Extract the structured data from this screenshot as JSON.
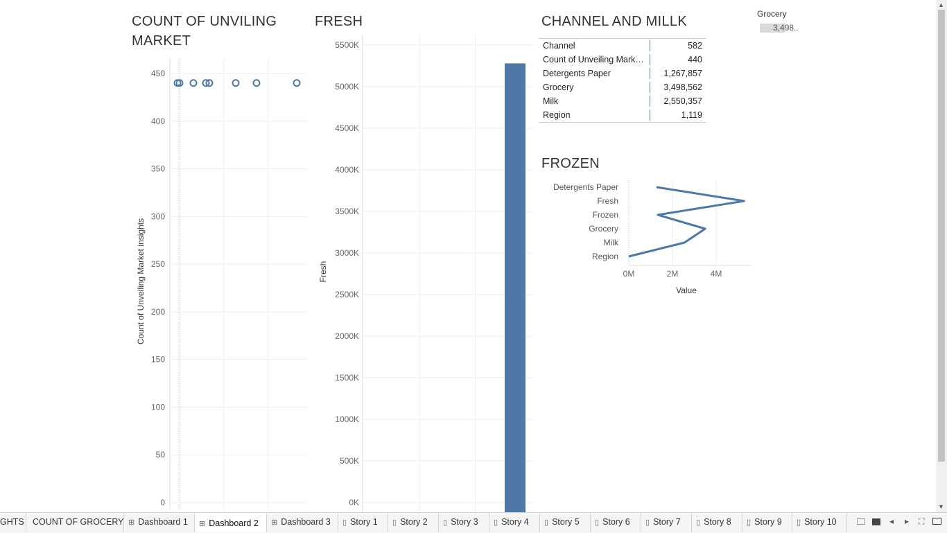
{
  "scatter": {
    "title_line1": "COUNT OF UNVILING",
    "title_line2": "MARKET",
    "y_ticks": [
      "450",
      "400",
      "350",
      "300",
      "250",
      "200",
      "150",
      "100",
      "50",
      "0"
    ],
    "y_axis_title": "Count of Unveiling Market insights",
    "marker_color": "#4e79a7"
  },
  "fresh": {
    "title": "FRESH",
    "y_ticks": [
      "5500K",
      "5000K",
      "4500K",
      "4000K",
      "3500K",
      "3000K",
      "2500K",
      "2000K",
      "1500K",
      "1000K",
      "500K",
      "0K"
    ],
    "y_axis_title": "Fresh",
    "bar_color": "#4e79a7"
  },
  "table": {
    "title": "CHANNEL AND MILLK",
    "rows": [
      {
        "label": "Channel",
        "value": "582"
      },
      {
        "label": "Count of Unveiling Market..",
        "value": "440"
      },
      {
        "label": "Detergents Paper",
        "value": "1,267,857"
      },
      {
        "label": "Grocery",
        "value": "3,498,562"
      },
      {
        "label": "Milk",
        "value": "2,550,357"
      },
      {
        "label": "Region",
        "value": "1,119"
      }
    ]
  },
  "frozen": {
    "title": "FROZEN",
    "categories": [
      "Detergents Paper",
      "Fresh",
      "Frozen",
      "Grocery",
      "Milk",
      "Region"
    ],
    "x_ticks": [
      "0M",
      "2M",
      "4M"
    ],
    "x_axis_title": "Value",
    "line_color": "#4e79a7"
  },
  "legend": {
    "title": "Grocery",
    "value": "3,498.."
  },
  "chart_data": [
    {
      "type": "scatter",
      "title": "COUNT OF UNVILING MARKET",
      "ylabel": "Count of Unveiling Market insights",
      "ylim": [
        0,
        450
      ],
      "y": [
        440,
        440,
        440,
        440,
        440,
        440,
        440,
        440
      ],
      "grid": true
    },
    {
      "type": "bar",
      "title": "FRESH",
      "ylabel": "Fresh",
      "ylim": [
        0,
        5500000
      ],
      "values": [
        5280000
      ],
      "grid": true
    },
    {
      "type": "table",
      "title": "CHANNEL AND MILLK",
      "rows": [
        [
          "Channel",
          582
        ],
        [
          "Count of Unveiling Market..",
          440
        ],
        [
          "Detergents Paper",
          1267857
        ],
        [
          "Grocery",
          3498562
        ],
        [
          "Milk",
          2550357
        ],
        [
          "Region",
          1119
        ]
      ]
    },
    {
      "type": "line",
      "title": "FROZEN",
      "xlabel": "Value",
      "xlim": [
        0,
        5500000
      ],
      "categories": [
        "Detergents Paper",
        "Fresh",
        "Frozen",
        "Grocery",
        "Milk",
        "Region"
      ],
      "values": [
        1267857,
        5280000,
        1330000,
        3498562,
        2550357,
        1119
      ],
      "grid": true
    }
  ],
  "tabs": [
    {
      "label": "GHTS",
      "icon": ""
    },
    {
      "label": "COUNT OF GROCERY",
      "icon": ""
    },
    {
      "label": "Dashboard 1",
      "icon": "dashboard-icon"
    },
    {
      "label": "Dashboard 2",
      "icon": "dashboard-icon",
      "active": true
    },
    {
      "label": "Dashboard 3",
      "icon": "dashboard-icon"
    },
    {
      "label": "Story 1",
      "icon": "story-icon"
    },
    {
      "label": "Story 2",
      "icon": "story-icon"
    },
    {
      "label": "Story 3",
      "icon": "story-icon"
    },
    {
      "label": "Story 4",
      "icon": "story-icon"
    },
    {
      "label": "Story 5",
      "icon": "story-icon"
    },
    {
      "label": "Story 6",
      "icon": "story-icon"
    },
    {
      "label": "Story 7",
      "icon": "story-icon"
    },
    {
      "label": "Story 8",
      "icon": "story-icon"
    },
    {
      "label": "Story 9",
      "icon": "story-icon"
    },
    {
      "label": "Story 10",
      "icon": "story-icon"
    }
  ]
}
